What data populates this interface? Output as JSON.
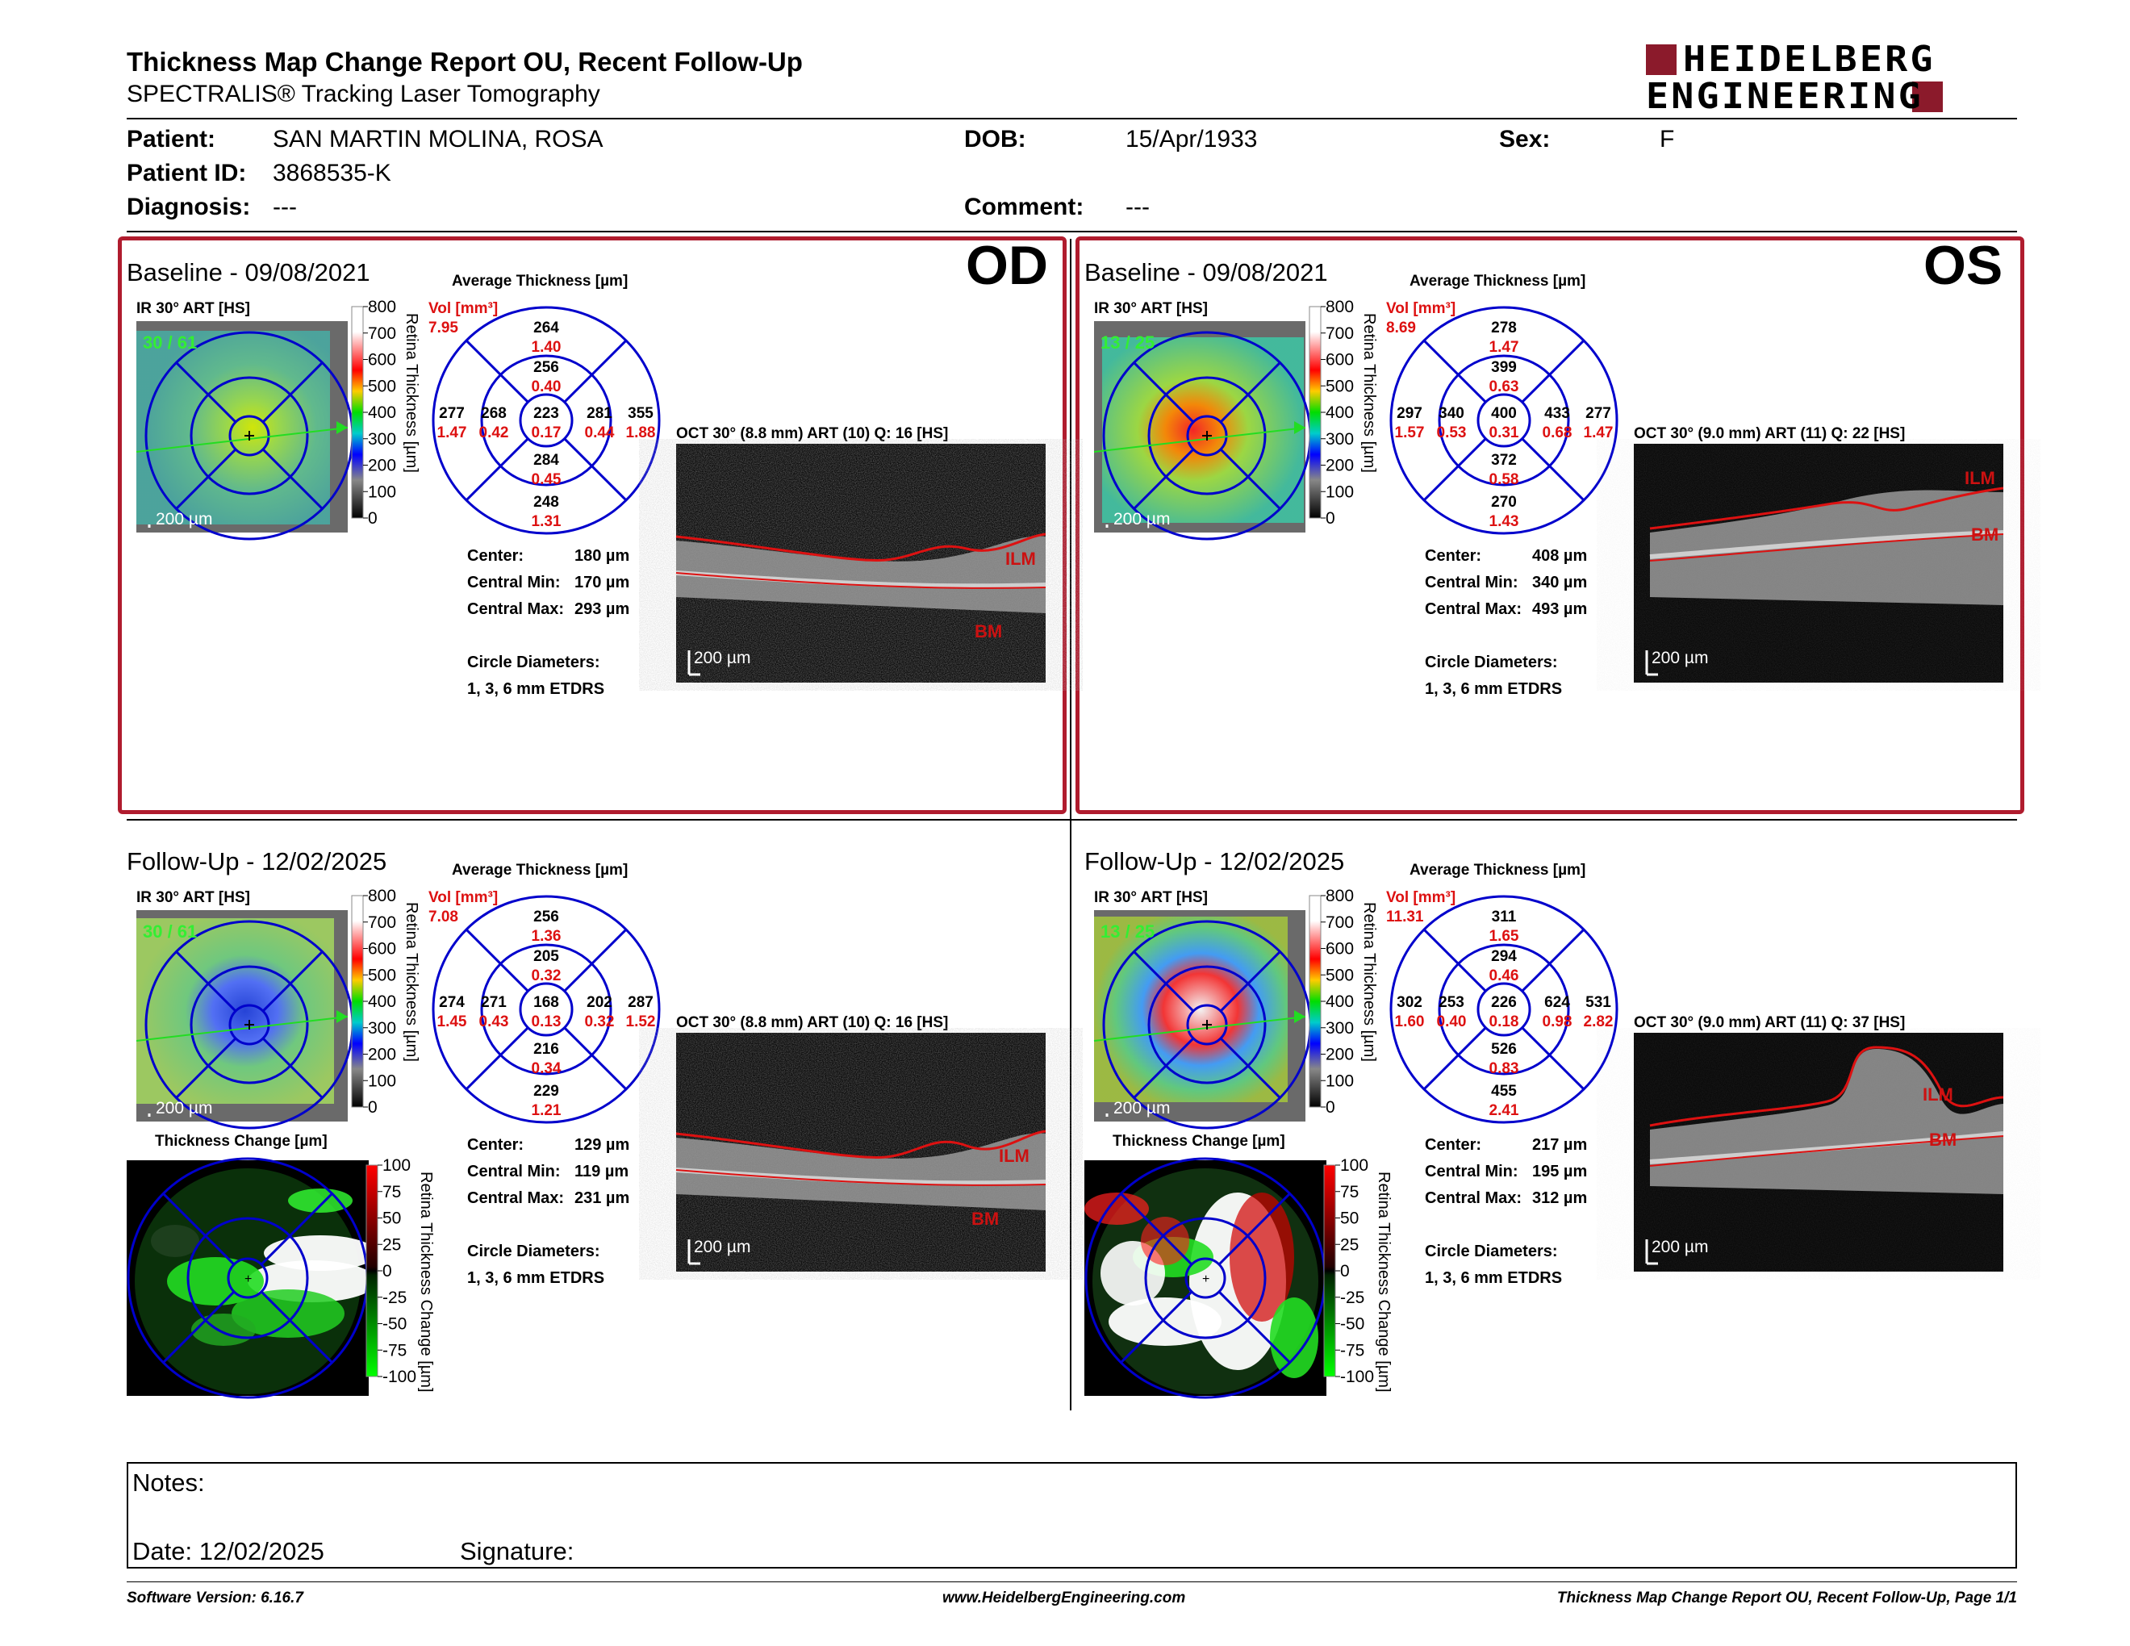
{
  "header": {
    "title": "Thickness Map Change Report OU, Recent Follow-Up",
    "subtitle": "SPECTRALIS® Tracking Laser Tomography",
    "logo_line1": "HEIDELBERG",
    "logo_line2": "ENGINEERING",
    "brand_color": "#8b1a2b"
  },
  "patient": {
    "patient_label": "Patient:",
    "patient_value": "SAN MARTIN MOLINA, ROSA",
    "id_label": "Patient ID:",
    "id_value": "3868535-K",
    "diag_label": "Diagnosis:",
    "diag_value": "---",
    "dob_label": "DOB:",
    "dob_value": "15/Apr/1933",
    "comment_label": "Comment:",
    "comment_value": "---",
    "sex_label": "Sex:",
    "sex_value": "F"
  },
  "common": {
    "avg_title": "Average Thickness [µm]",
    "ir_title": "IR 30° ART [HS]",
    "scale_200": "200 µm",
    "ret_label": "Retina Thickness [µm]",
    "chg_title": "Thickness Change [µm]",
    "chg_label": "Retina Thickness Change [µm]",
    "thick_ticks": [
      "800",
      "700",
      "600",
      "500",
      "400",
      "300",
      "200",
      "100",
      "0"
    ],
    "change_ticks": [
      "100",
      "75",
      "50",
      "25",
      "0",
      "-25",
      "-50",
      "-75",
      "-100"
    ],
    "center_l": "Center:",
    "min_l": "Central Min:",
    "max_l": "Central Max:",
    "circ_l": "Circle Diameters:",
    "circ_v": "1, 3, 6 mm ETDRS",
    "vol_l": "Vol [mm³]",
    "ilm": "ILM",
    "bm": "BM"
  },
  "panels": {
    "od_base": {
      "title": "Baseline - 09/08/2021",
      "eye": "OD",
      "ir_count": "30 / 61",
      "oct_title": "OCT 30° (8.8 mm) ART (10) Q: 16 [HS]",
      "vol": "7.95",
      "sup_o": "264",
      "sup_o_v": "1.40",
      "sup_i": "256",
      "sup_i_v": "0.40",
      "tmp_o": "277",
      "tmp_o_v": "1.47",
      "tmp_i": "268",
      "tmp_i_v": "0.42",
      "ctr": "223",
      "ctr_v": "0.17",
      "nas_i": "281",
      "nas_i_v": "0.44",
      "nas_o": "355",
      "nas_o_v": "1.88",
      "inf_i": "284",
      "inf_i_v": "0.45",
      "inf_o": "248",
      "inf_o_v": "1.31",
      "center": "180 µm",
      "cmin": "170 µm",
      "cmax": "293 µm"
    },
    "os_base": {
      "title": "Baseline - 09/08/2021",
      "eye": "OS",
      "ir_count": "13 / 25",
      "oct_title": "OCT 30° (9.0 mm) ART (11) Q: 22 [HS]",
      "vol": "8.69",
      "sup_o": "278",
      "sup_o_v": "1.47",
      "sup_i": "399",
      "sup_i_v": "0.63",
      "tmp_o": "297",
      "tmp_o_v": "1.57",
      "tmp_i": "340",
      "tmp_i_v": "0.53",
      "ctr": "400",
      "ctr_v": "0.31",
      "nas_i": "433",
      "nas_i_v": "0.68",
      "nas_o": "277",
      "nas_o_v": "1.47",
      "inf_i": "372",
      "inf_i_v": "0.58",
      "inf_o": "270",
      "inf_o_v": "1.43",
      "center": "408 µm",
      "cmin": "340 µm",
      "cmax": "493 µm"
    },
    "od_fu": {
      "title": "Follow-Up - 12/02/2025",
      "ir_count": "30 / 61",
      "oct_title": "OCT 30° (8.8 mm) ART (10) Q: 16 [HS]",
      "vol": "7.08",
      "sup_o": "256",
      "sup_o_v": "1.36",
      "sup_i": "205",
      "sup_i_v": "0.32",
      "tmp_o": "274",
      "tmp_o_v": "1.45",
      "tmp_i": "271",
      "tmp_i_v": "0.43",
      "ctr": "168",
      "ctr_v": "0.13",
      "nas_i": "202",
      "nas_i_v": "0.32",
      "nas_o": "287",
      "nas_o_v": "1.52",
      "inf_i": "216",
      "inf_i_v": "0.34",
      "inf_o": "229",
      "inf_o_v": "1.21",
      "center": "129 µm",
      "cmin": "119 µm",
      "cmax": "231 µm"
    },
    "os_fu": {
      "title": "Follow-Up - 12/02/2025",
      "ir_count": "13 / 25",
      "oct_title": "OCT 30° (9.0 mm) ART (11) Q: 37 [HS]",
      "vol": "11.31",
      "sup_o": "311",
      "sup_o_v": "1.65",
      "sup_i": "294",
      "sup_i_v": "0.46",
      "tmp_o": "302",
      "tmp_o_v": "1.60",
      "tmp_i": "253",
      "tmp_i_v": "0.40",
      "ctr": "226",
      "ctr_v": "0.18",
      "nas_i": "624",
      "nas_i_v": "0.98",
      "nas_o": "531",
      "nas_o_v": "2.82",
      "inf_i": "526",
      "inf_i_v": "0.83",
      "inf_o": "455",
      "inf_o_v": "2.41",
      "center": "217 µm",
      "cmin": "195 µm",
      "cmax": "312 µm"
    }
  },
  "notes": {
    "notes_label": "Notes:",
    "date_label": "Date: 12/02/2025",
    "sig_label": "Signature:"
  },
  "footer": {
    "left": "Software Version: 6.16.7",
    "center": "www.HeidelbergEngineering.com",
    "right": "Thickness Map Change Report OU, Recent Follow-Up, Page 1/1"
  }
}
